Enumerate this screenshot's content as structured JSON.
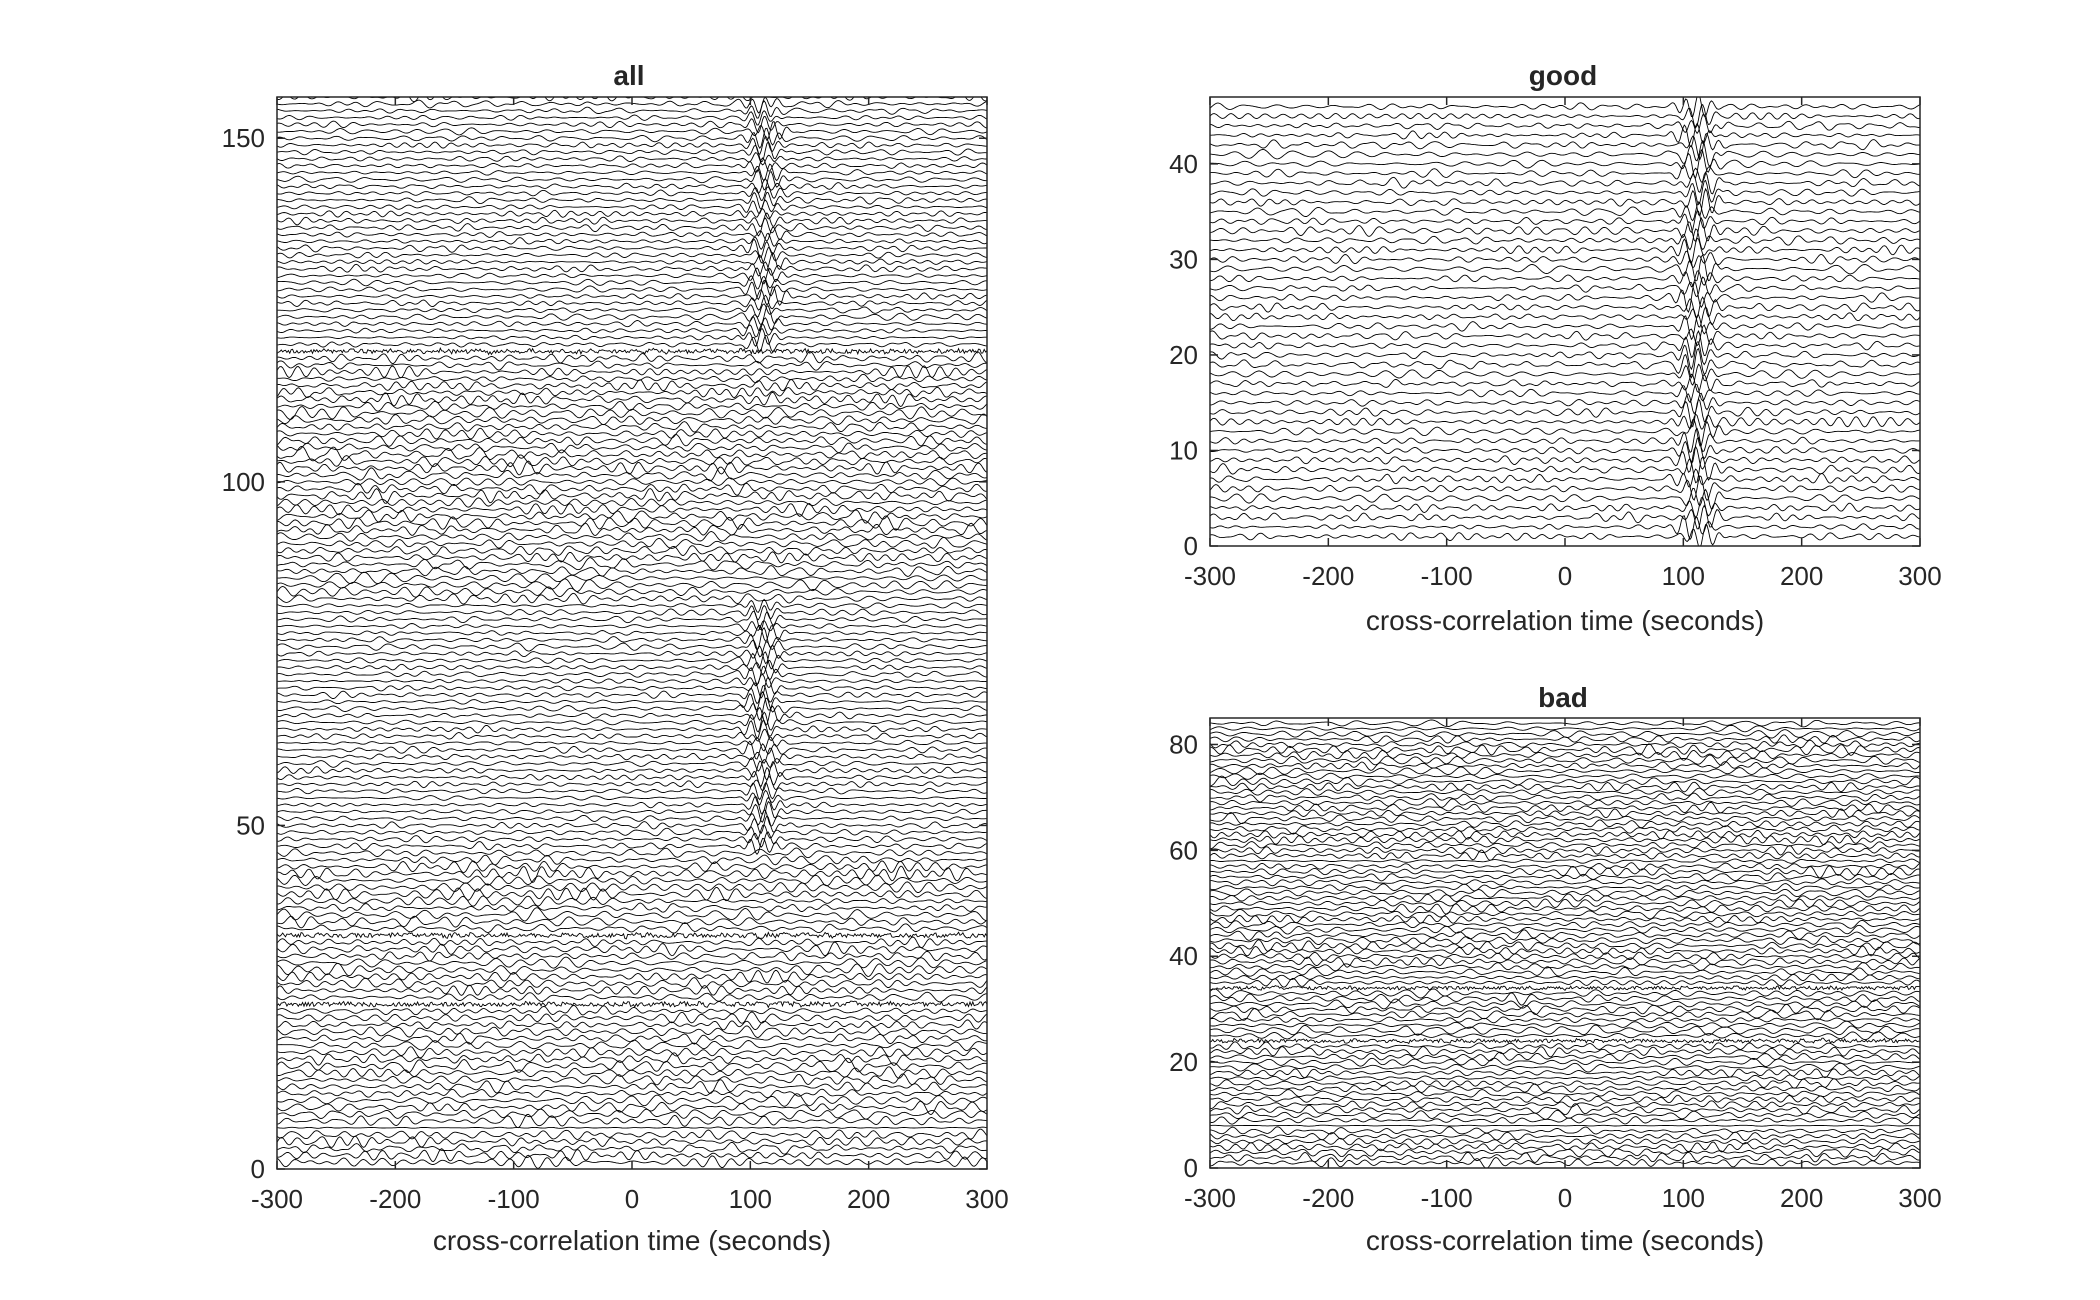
{
  "chart_data": [
    {
      "type": "line",
      "title": "all",
      "xlabel": "cross-correlation time (seconds)",
      "ylabel": "",
      "xlim": [
        -300,
        300
      ],
      "ylim": [
        0,
        156
      ],
      "xticks": [
        -300,
        -200,
        -100,
        0,
        100,
        200,
        300
      ],
      "yticks": [
        0,
        50,
        100,
        150
      ],
      "xtick_labels": [
        "-300",
        "-200",
        "-100",
        "0",
        "100",
        "200",
        "300"
      ],
      "ytick_labels": [
        "0",
        "50",
        "100",
        "150"
      ],
      "grid": false,
      "legend": "none",
      "trace_count": 156,
      "line_color": "#000000",
      "series_description": {
        "arrival_time_s": 112,
        "arrival_trace_ranges": [
          [
            47,
            82
          ],
          [
            120,
            155
          ]
        ],
        "noisy_traces": [
          24,
          34,
          119
        ],
        "flat_traces": [
          6
        ]
      }
    },
    {
      "type": "line",
      "title": "good",
      "xlabel": "cross-correlation time (seconds)",
      "ylabel": "",
      "xlim": [
        -300,
        300
      ],
      "ylim": [
        0,
        47
      ],
      "xticks": [
        -300,
        -200,
        -100,
        0,
        100,
        200,
        300
      ],
      "yticks": [
        0,
        10,
        20,
        30,
        40
      ],
      "xtick_labels": [
        "-300",
        "-200",
        "-100",
        "0",
        "100",
        "200",
        "300"
      ],
      "ytick_labels": [
        "0",
        "10",
        "20",
        "30",
        "40"
      ],
      "grid": false,
      "legend": "none",
      "trace_count": 46,
      "line_color": "#000000",
      "series_description": {
        "arrival_time_s": 112,
        "arrival_trace_ranges": [
          [
            1,
            46
          ]
        ],
        "noisy_traces": [],
        "flat_traces": []
      }
    },
    {
      "type": "line",
      "title": "bad",
      "xlabel": "cross-correlation time (seconds)",
      "ylabel": "",
      "xlim": [
        -300,
        300
      ],
      "ylim": [
        0,
        85
      ],
      "xticks": [
        -300,
        -200,
        -100,
        0,
        100,
        200,
        300
      ],
      "yticks": [
        0,
        20,
        40,
        60,
        80
      ],
      "xtick_labels": [
        "-300",
        "-200",
        "-100",
        "0",
        "100",
        "200",
        "300"
      ],
      "ytick_labels": [
        "0",
        "20",
        "40",
        "60",
        "80"
      ],
      "grid": false,
      "legend": "none",
      "trace_count": 84,
      "line_color": "#000000",
      "series_description": {
        "arrival_time_s": null,
        "arrival_trace_ranges": [],
        "noisy_traces": [
          24,
          34
        ],
        "flat_traces": [
          8
        ]
      }
    }
  ]
}
